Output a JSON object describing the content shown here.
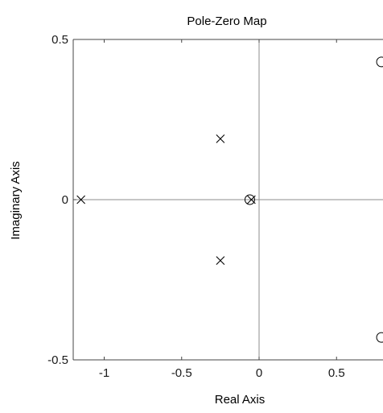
{
  "chart_data": {
    "type": "scatter",
    "title": "Pole-Zero Map",
    "xlabel": "Real Axis",
    "ylabel": "Imaginary Axis",
    "xlim": [
      -1.2,
      0.8
    ],
    "ylim": [
      -0.5,
      0.5
    ],
    "x_ticks": [
      -1,
      -0.5,
      0,
      0.5
    ],
    "x_tick_labels": [
      "-1",
      "-0.5",
      "0",
      "0.5"
    ],
    "y_ticks": [
      -0.5,
      0,
      0.5
    ],
    "y_tick_labels": [
      "-0.5",
      "0",
      "0.5"
    ],
    "grid": false,
    "zero_lines": true,
    "colors": {
      "axis": "#444444",
      "zero_line": "#8c8c8c",
      "marker": "#000000"
    },
    "series": [
      {
        "marker": "x",
        "points": [
          {
            "x": -1.15,
            "y": 0.0
          },
          {
            "x": -0.25,
            "y": 0.19
          },
          {
            "x": -0.25,
            "y": -0.19
          },
          {
            "x": -0.05,
            "y": 0.0
          }
        ]
      },
      {
        "marker": "o",
        "points": [
          {
            "x": -0.06,
            "y": 0.0
          },
          {
            "x": 0.79,
            "y": 0.43
          },
          {
            "x": 0.79,
            "y": -0.43
          }
        ]
      }
    ]
  }
}
